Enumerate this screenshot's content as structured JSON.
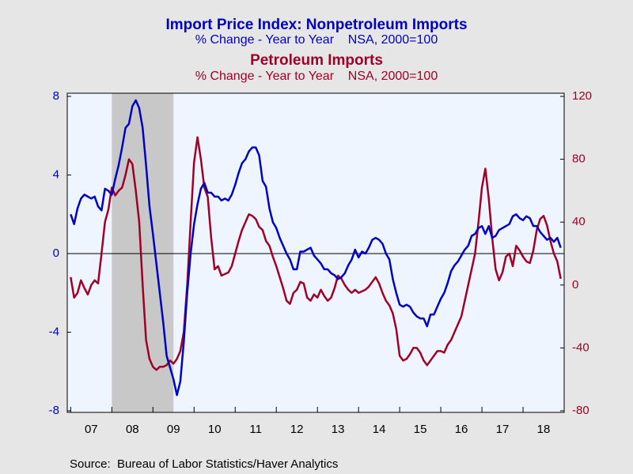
{
  "chart_data": {
    "type": "line",
    "title": "Import Price Index: Nonpetroleum Imports",
    "subtitle": "% Change - Year to Year    NSA, 2000=100",
    "title2": "Petroleum Imports",
    "subtitle2": "% Change - Year to Year    NSA, 2000=100",
    "source": "Source:  Bureau of Labor Statistics/Haver Analytics",
    "year_labels": [
      "07",
      "08",
      "09",
      "10",
      "11",
      "12",
      "13",
      "14",
      "15",
      "16",
      "17",
      "18"
    ],
    "xlim": [
      -1,
      144
    ],
    "xticks": [
      0,
      12,
      24,
      36,
      48,
      60,
      72,
      84,
      96,
      108,
      120,
      132,
      144
    ],
    "ylim": [
      -8,
      8
    ],
    "yticks": [
      -8,
      -4,
      0,
      4,
      8
    ],
    "y2lim": [
      -80,
      120
    ],
    "y2ticks": [
      -80,
      -40,
      0,
      40,
      80,
      120
    ],
    "shading": [
      12,
      30
    ],
    "series": [
      {
        "name": "Import Price Index: Nonpetroleum Imports",
        "color": "#0000c0",
        "axis": "y",
        "values": [
          2.0,
          1.5,
          2.3,
          2.8,
          3.0,
          2.9,
          2.8,
          2.9,
          2.4,
          2.2,
          3.3,
          3.2,
          3.0,
          3.8,
          4.5,
          5.4,
          6.4,
          6.6,
          7.5,
          7.8,
          7.4,
          6.4,
          4.5,
          2.4,
          1.0,
          -0.5,
          -2.0,
          -3.5,
          -5.2,
          -5.8,
          -6.4,
          -7.2,
          -6.5,
          -4.5,
          -2.0,
          0.0,
          1.5,
          2.5,
          3.3,
          3.6,
          3.1,
          3.1,
          2.9,
          2.9,
          2.7,
          2.8,
          2.7,
          3.0,
          3.5,
          4.1,
          4.6,
          4.8,
          5.2,
          5.4,
          5.4,
          5.0,
          3.7,
          3.4,
          2.3,
          1.6,
          1.3,
          0.8,
          0.4,
          0.0,
          -0.3,
          -0.8,
          -0.8,
          0.1,
          0.1,
          0.2,
          0.3,
          -0.1,
          -0.3,
          -0.5,
          -0.8,
          -0.8,
          -1.0,
          -1.1,
          -1.3,
          -1.2,
          -1.0,
          -0.6,
          -0.3,
          0.2,
          -0.2,
          0.1,
          0.0,
          0.3,
          0.7,
          0.8,
          0.7,
          0.5,
          0.0,
          -0.3,
          -1.3,
          -2.0,
          -2.6,
          -2.7,
          -2.6,
          -2.7,
          -3.0,
          -3.2,
          -3.3,
          -3.3,
          -3.7,
          -3.1,
          -3.1,
          -2.7,
          -2.3,
          -2.0,
          -1.5,
          -0.9,
          -0.6,
          -0.4,
          -0.1,
          0.2,
          0.4,
          0.9,
          1.0,
          1.3,
          1.4,
          1.0,
          1.4,
          0.8,
          0.9,
          1.2,
          1.3,
          1.4,
          1.5,
          1.9,
          2.0,
          1.8,
          1.7,
          1.9,
          1.8,
          1.4,
          1.4,
          1.1,
          0.9,
          0.7,
          0.8,
          0.6,
          0.8,
          0.3
        ]
      },
      {
        "name": "Petroleum Imports",
        "color": "#a00028",
        "axis": "y2",
        "values": [
          5,
          -8,
          -5,
          3,
          -2,
          -6,
          0,
          3,
          1,
          20,
          40,
          48,
          62,
          57,
          60,
          62,
          70,
          80,
          77,
          60,
          40,
          0,
          -35,
          -47,
          -52,
          -54,
          -52,
          -52,
          -51,
          -48,
          -50,
          -47,
          -42,
          -30,
          0,
          40,
          78,
          94,
          80,
          62,
          56,
          30,
          10,
          12,
          6,
          7,
          8,
          12,
          20,
          28,
          35,
          40,
          45,
          44,
          42,
          37,
          35,
          28,
          25,
          18,
          12,
          5,
          -2,
          -10,
          -12,
          -5,
          -3,
          2,
          1,
          -8,
          -10,
          -6,
          -8,
          -3,
          -7,
          -10,
          -8,
          -2,
          6,
          4,
          0,
          -3,
          -5,
          -3,
          -5,
          -4,
          -3,
          -1,
          2,
          5,
          1,
          -5,
          -10,
          -13,
          -18,
          -28,
          -45,
          -48,
          -47,
          -44,
          -40,
          -40,
          -43,
          -48,
          -51,
          -48,
          -45,
          -42,
          -42,
          -43,
          -38,
          -35,
          -30,
          -25,
          -20,
          -10,
          0,
          10,
          20,
          40,
          62,
          74,
          55,
          30,
          10,
          3,
          8,
          18,
          20,
          12,
          25,
          22,
          18,
          15,
          14,
          22,
          35,
          42,
          44,
          38,
          28,
          20,
          15,
          4
        ]
      }
    ]
  }
}
